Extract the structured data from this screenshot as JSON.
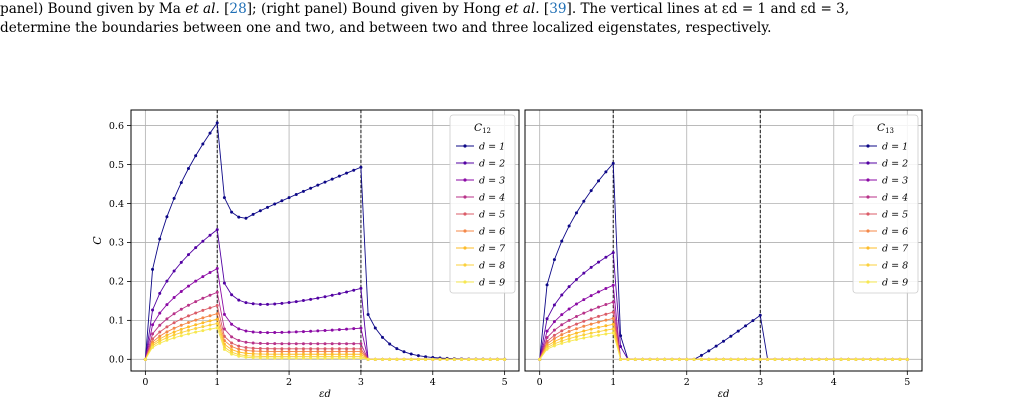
{
  "caption": {
    "line1_a": "panel) Bound given by Ma ",
    "line1_etal1": "et al.",
    "line1_ref1_open": " [",
    "line1_ref1": "28",
    "line1_b": "]; (right panel) Bound given by Hong ",
    "line1_etal2": "et al.",
    "line1_ref2_open": " [",
    "line1_ref2": "39",
    "line1_c": "]. The vertical lines at εd = 1 and εd = 3,",
    "line2": "determine the boundaries between one and two, and between two and three localized eigenstates, respectively."
  },
  "colors": {
    "series": [
      "#0d0887",
      "#5302a3",
      "#8b0aa5",
      "#b83289",
      "#db5c68",
      "#f48849",
      "#febc2a",
      "#fbd13d",
      "#f7e850"
    ],
    "grid": "#b0b0b0",
    "vline": "#000000"
  },
  "chart_data": [
    {
      "type": "line",
      "panel": "left",
      "xlabel": "εd",
      "ylabel": "C",
      "legend_title": "C12",
      "legend_position": "top-right",
      "grid": true,
      "xlim": [
        -0.2,
        5.2
      ],
      "ylim": [
        -0.03,
        0.64
      ],
      "xticks": [
        0,
        1,
        2,
        3,
        4,
        5
      ],
      "yticks": [
        0.0,
        0.1,
        0.2,
        0.3,
        0.4,
        0.5,
        0.6
      ],
      "ytick_labels": [
        "0.0",
        "0.1",
        "0.2",
        "0.3",
        "0.4",
        "0.5",
        "0.6"
      ],
      "vlines": [
        1,
        3
      ],
      "series": [
        {
          "name": "d = 1",
          "peak1": 0.607,
          "min": 0.362,
          "peak2": 0.493,
          "tail": 0.115
        },
        {
          "name": "d = 2",
          "peak1": 0.333,
          "min": 0.14,
          "peak2": 0.182,
          "tail": 0.0
        },
        {
          "name": "d = 3",
          "peak1": 0.233,
          "min": 0.068,
          "peak2": 0.08,
          "tail": 0.0
        },
        {
          "name": "d = 4",
          "peak1": 0.172,
          "min": 0.04,
          "peak2": 0.04,
          "tail": 0.0
        },
        {
          "name": "d = 5",
          "peak1": 0.138,
          "min": 0.027,
          "peak2": 0.027,
          "tail": 0.0
        },
        {
          "name": "d = 6",
          "peak1": 0.117,
          "min": 0.02,
          "peak2": 0.02,
          "tail": 0.0
        },
        {
          "name": "d = 7",
          "peak1": 0.103,
          "min": 0.013,
          "peak2": 0.013,
          "tail": 0.0
        },
        {
          "name": "d = 8",
          "peak1": 0.092,
          "min": 0.007,
          "peak2": 0.007,
          "tail": 0.0
        },
        {
          "name": "d = 9",
          "peak1": 0.081,
          "min": 0.003,
          "peak2": 0.003,
          "tail": 0.0
        }
      ]
    },
    {
      "type": "line",
      "panel": "right",
      "xlabel": "εd",
      "legend_title": "C13",
      "legend_position": "top-right",
      "grid": true,
      "xlim": [
        -0.2,
        5.2
      ],
      "ylim": [
        -0.03,
        0.64
      ],
      "xticks": [
        0,
        1,
        2,
        3,
        4,
        5
      ],
      "vlines": [
        1,
        3
      ],
      "series": [
        {
          "name": "d = 1",
          "peak1": 0.503,
          "bump": 0.113
        },
        {
          "name": "d = 2",
          "peak1": 0.274,
          "bump": 0.0
        },
        {
          "name": "d = 3",
          "peak1": 0.19,
          "bump": 0.0
        },
        {
          "name": "d = 4",
          "peak1": 0.147,
          "bump": 0.0
        },
        {
          "name": "d = 5",
          "peak1": 0.121,
          "bump": 0.0
        },
        {
          "name": "d = 6",
          "peak1": 0.105,
          "bump": 0.0
        },
        {
          "name": "d = 7",
          "peak1": 0.09,
          "bump": 0.0
        },
        {
          "name": "d = 8",
          "peak1": 0.078,
          "bump": 0.0
        },
        {
          "name": "d = 9",
          "peak1": 0.068,
          "bump": 0.0
        }
      ]
    }
  ]
}
